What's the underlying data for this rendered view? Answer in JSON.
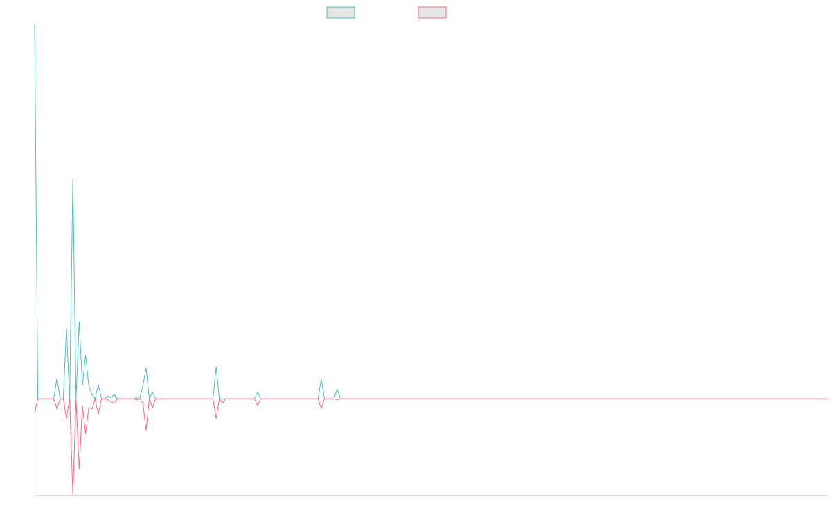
{
  "chart_data": {
    "type": "line",
    "title": "",
    "xlabel": "",
    "ylabel": "",
    "grid": false,
    "legend_position": "top-center",
    "xlim": [
      0,
      249
    ],
    "ylim": [
      -0.44,
      1.7
    ],
    "series": [
      {
        "color": "#4bc0c0",
        "fill": "#e5e5e5",
        "points": [
          [
            0,
            1.7
          ],
          [
            1,
            0.0
          ],
          [
            6,
            0.0
          ],
          [
            7,
            0.095
          ],
          [
            8,
            0.0
          ],
          [
            9,
            0.0
          ],
          [
            10,
            0.32
          ],
          [
            11,
            0.0
          ],
          [
            12,
            1.0
          ],
          [
            13,
            0.0
          ],
          [
            14,
            0.35
          ],
          [
            15,
            0.06
          ],
          [
            16,
            0.2
          ],
          [
            17,
            0.06
          ],
          [
            18,
            0.02
          ],
          [
            19,
            0.0
          ],
          [
            20,
            0.065
          ],
          [
            21,
            0.0
          ],
          [
            22,
            0.0
          ],
          [
            23,
            0.012
          ],
          [
            24,
            0.005
          ],
          [
            25,
            0.02
          ],
          [
            26,
            0.0
          ],
          [
            31,
            0.0
          ],
          [
            32,
            0.005
          ],
          [
            33,
            0.0
          ],
          [
            34,
            0.06
          ],
          [
            35,
            0.14
          ],
          [
            36,
            0.0
          ],
          [
            37,
            0.03
          ],
          [
            38,
            0.0
          ],
          [
            56,
            0.0
          ],
          [
            57,
            0.145
          ],
          [
            58,
            0.0
          ],
          [
            59,
            0.0
          ],
          [
            69,
            0.0
          ],
          [
            70,
            0.03
          ],
          [
            71,
            0.0
          ],
          [
            89,
            0.0
          ],
          [
            90,
            0.09
          ],
          [
            91,
            0.0
          ],
          [
            94,
            0.0
          ],
          [
            95,
            0.045
          ],
          [
            96,
            0.0
          ],
          [
            249,
            0.0
          ]
        ]
      },
      {
        "color": "#ff6384",
        "fill": "#e5e5e5",
        "points": [
          [
            0,
            -0.065
          ],
          [
            1,
            0.0
          ],
          [
            6,
            0.0
          ],
          [
            7,
            -0.045
          ],
          [
            8,
            0.0
          ],
          [
            9,
            0.0
          ],
          [
            10,
            -0.09
          ],
          [
            11,
            0.0
          ],
          [
            12,
            -0.44
          ],
          [
            13,
            0.0
          ],
          [
            14,
            -0.32
          ],
          [
            15,
            -0.03
          ],
          [
            16,
            -0.16
          ],
          [
            17,
            -0.04
          ],
          [
            18,
            -0.045
          ],
          [
            19,
            0.0
          ],
          [
            20,
            -0.07
          ],
          [
            21,
            0.0
          ],
          [
            22,
            0.0
          ],
          [
            23,
            -0.005
          ],
          [
            24,
            -0.015
          ],
          [
            25,
            -0.02
          ],
          [
            26,
            0.0
          ],
          [
            31,
            0.0
          ],
          [
            32,
            -0.005
          ],
          [
            33,
            0.0
          ],
          [
            34,
            -0.02
          ],
          [
            35,
            -0.145
          ],
          [
            36,
            0.0
          ],
          [
            37,
            -0.04
          ],
          [
            38,
            0.0
          ],
          [
            56,
            0.0
          ],
          [
            57,
            -0.09
          ],
          [
            58,
            0.0
          ],
          [
            59,
            -0.02
          ],
          [
            60,
            0.0
          ],
          [
            69,
            0.0
          ],
          [
            70,
            -0.03
          ],
          [
            71,
            0.0
          ],
          [
            89,
            0.0
          ],
          [
            90,
            -0.045
          ],
          [
            91,
            0.0
          ],
          [
            94,
            0.0
          ],
          [
            95,
            -0.005
          ],
          [
            96,
            0.0
          ],
          [
            249,
            0.0
          ]
        ]
      }
    ]
  }
}
